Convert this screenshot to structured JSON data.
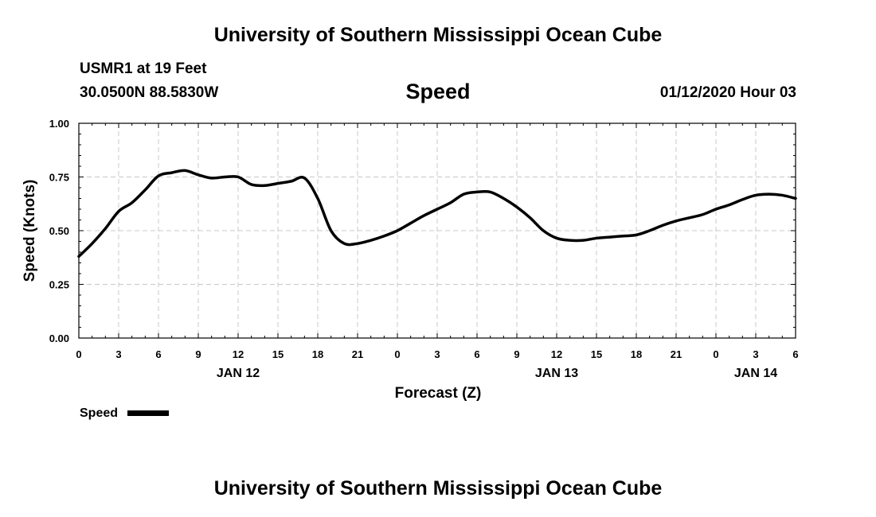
{
  "header": {
    "top_title": "University of Southern Mississippi Ocean Cube",
    "station": "USMR1 at 19 Feet",
    "coords": "30.0500N 88.5830W",
    "datetime": "01/12/2020 Hour 03",
    "bottom_title": "University of Southern Mississippi Ocean Cube"
  },
  "chart_data": {
    "type": "line",
    "title": "Speed",
    "xlabel": "Forecast (Z)",
    "ylabel": "Speed (Knots)",
    "xlim": [
      0,
      54
    ],
    "ylim": [
      0,
      1.0
    ],
    "grid": true,
    "line_color": "#000000",
    "y_ticks": [
      "0.00",
      "0.25",
      "0.50",
      "0.75",
      "1.00"
    ],
    "x_tick_labels": [
      "0",
      "3",
      "6",
      "9",
      "12",
      "15",
      "18",
      "21",
      "0",
      "3",
      "6",
      "9",
      "12",
      "15",
      "18",
      "21",
      "0",
      "3",
      "6"
    ],
    "date_labels": [
      {
        "label": "JAN 12",
        "hour": 12
      },
      {
        "label": "JAN 13",
        "hour": 36
      },
      {
        "label": "JAN 14",
        "hour": 51
      }
    ],
    "legend": {
      "label": "Speed",
      "placement": "bottom-left"
    },
    "series": [
      {
        "name": "Speed",
        "x": [
          0,
          1,
          2,
          3,
          4,
          5,
          6,
          7,
          8,
          9,
          10,
          11,
          12,
          13,
          14,
          15,
          16,
          17,
          18,
          19,
          20,
          21,
          22,
          23,
          24,
          25,
          26,
          27,
          28,
          29,
          30,
          31,
          32,
          33,
          34,
          35,
          36,
          37,
          38,
          39,
          40,
          41,
          42,
          43,
          44,
          45,
          46,
          47,
          48,
          49,
          50,
          51,
          52,
          53,
          54
        ],
        "values": [
          0.38,
          0.44,
          0.51,
          0.59,
          0.63,
          0.69,
          0.755,
          0.77,
          0.78,
          0.76,
          0.745,
          0.75,
          0.75,
          0.715,
          0.71,
          0.72,
          0.73,
          0.745,
          0.65,
          0.5,
          0.44,
          0.44,
          0.455,
          0.475,
          0.5,
          0.535,
          0.57,
          0.6,
          0.63,
          0.67,
          0.68,
          0.68,
          0.65,
          0.61,
          0.56,
          0.5,
          0.465,
          0.455,
          0.455,
          0.465,
          0.47,
          0.475,
          0.48,
          0.5,
          0.525,
          0.545,
          0.56,
          0.575,
          0.6,
          0.62,
          0.645,
          0.665,
          0.67,
          0.665,
          0.65
        ]
      }
    ]
  }
}
